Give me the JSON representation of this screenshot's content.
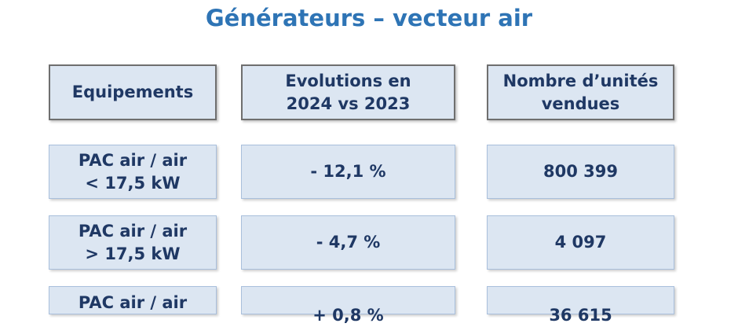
{
  "title": "Générateurs – vecteur air",
  "header": [
    [
      "Equipements"
    ],
    [
      "Evolutions en",
      "2024 vs 2023"
    ],
    [
      "Nombre d’unités",
      "vendues"
    ]
  ],
  "rows": [
    [
      [
        "PAC air / air",
        "< 17,5 kW"
      ],
      [
        "- 12,1 %"
      ],
      [
        "800 399"
      ]
    ],
    [
      [
        "PAC air / air",
        "> 17,5 kW"
      ],
      [
        "- 4,7 %"
      ],
      [
        "4 097"
      ]
    ],
    [
      [
        "PAC air / air"
      ],
      [
        "+ 0,8 %"
      ],
      [
        "36 615"
      ]
    ]
  ]
}
